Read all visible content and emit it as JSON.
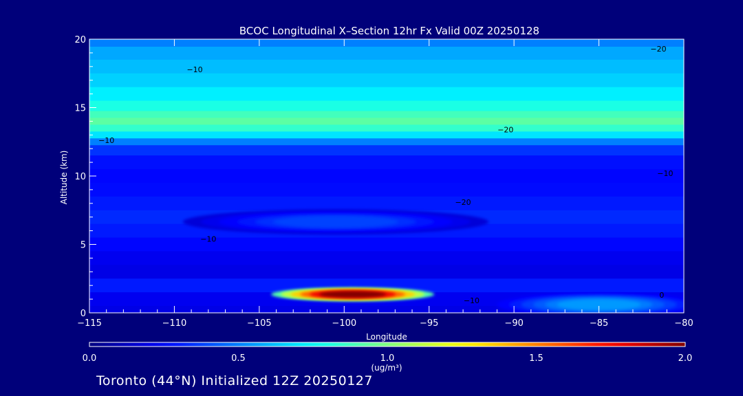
{
  "chart_data": {
    "type": "heatmap",
    "title": "BCOC Longitudinal X–Section 12hr  Fx Valid 00Z 20250128",
    "xlabel": "Longitude",
    "ylabel": "Altitude (km)",
    "xlim": [
      -115,
      -80
    ],
    "ylim": [
      0,
      20
    ],
    "x_ticks": [
      -115,
      -110,
      -105,
      -100,
      -95,
      -90,
      -85,
      -80
    ],
    "x_tick_labels": [
      "−115",
      "−110",
      "−105",
      "−100",
      "−95",
      "−90",
      "−85",
      "−80"
    ],
    "y_ticks": [
      0,
      5,
      10,
      15,
      20
    ],
    "y_tick_labels": [
      "0",
      "5",
      "10",
      "15",
      "20"
    ],
    "colorbar": {
      "min": 0.0,
      "max": 2.0,
      "ticks": [
        0.0,
        0.5,
        1.0,
        1.5,
        2.0
      ],
      "tick_labels": [
        "0.0",
        "0.5",
        "1.0",
        "1.5",
        "2.0"
      ],
      "unit_label": "(ug/m³)",
      "colormap": "jet"
    },
    "field_bands": [
      {
        "alt_km": 19.9,
        "value": 0.5
      },
      {
        "alt_km": 19.0,
        "value": 0.58
      },
      {
        "alt_km": 18.0,
        "value": 0.62
      },
      {
        "alt_km": 17.0,
        "value": 0.66
      },
      {
        "alt_km": 16.0,
        "value": 0.72
      },
      {
        "alt_km": 15.0,
        "value": 0.8
      },
      {
        "alt_km": 14.5,
        "value": 0.88
      },
      {
        "alt_km": 14.0,
        "value": 0.93
      },
      {
        "alt_km": 13.5,
        "value": 0.85
      },
      {
        "alt_km": 13.0,
        "value": 0.7
      },
      {
        "alt_km": 12.5,
        "value": 0.5
      },
      {
        "alt_km": 12.0,
        "value": 0.35
      },
      {
        "alt_km": 11.0,
        "value": 0.28
      },
      {
        "alt_km": 10.0,
        "value": 0.26
      },
      {
        "alt_km": 9.0,
        "value": 0.27
      },
      {
        "alt_km": 8.0,
        "value": 0.3
      },
      {
        "alt_km": 7.0,
        "value": 0.33
      },
      {
        "alt_km": 6.0,
        "value": 0.3
      },
      {
        "alt_km": 5.0,
        "value": 0.26
      },
      {
        "alt_km": 4.0,
        "value": 0.22
      },
      {
        "alt_km": 3.0,
        "value": 0.2
      },
      {
        "alt_km": 2.0,
        "value": 0.3
      },
      {
        "alt_km": 1.0,
        "value": 0.22
      },
      {
        "alt_km": 0.0,
        "value": 0.2
      }
    ],
    "plumes": [
      {
        "name": "lower-tropospheric-core",
        "lon": [
          -103.5,
          -95.5
        ],
        "alt": [
          1.0,
          1.7
        ],
        "peak_value": 2.0
      },
      {
        "name": "surface-layer-east",
        "lon": [
          -90,
          -80
        ],
        "alt": [
          0.0,
          1.2
        ],
        "peak_value": 0.55
      },
      {
        "name": "mid-level-layer",
        "lon": [
          -108,
          -93
        ],
        "alt": [
          6.0,
          7.3
        ],
        "peak_value": 0.38
      }
    ],
    "contour_labels": [
      {
        "text": "−10",
        "lon": -108.8,
        "alt": 17.6
      },
      {
        "text": "−20",
        "lon": -81.5,
        "alt": 19.1
      },
      {
        "text": "−10",
        "lon": -114.0,
        "alt": 12.4
      },
      {
        "text": "−20",
        "lon": -90.5,
        "alt": 13.2
      },
      {
        "text": "−10",
        "lon": -81.1,
        "alt": 10.0
      },
      {
        "text": "−20",
        "lon": -93.0,
        "alt": 7.9
      },
      {
        "text": "−10",
        "lon": -108.0,
        "alt": 5.2
      },
      {
        "text": "−10",
        "lon": -92.5,
        "alt": 0.7
      },
      {
        "text": "0",
        "lon": -81.3,
        "alt": 1.1
      }
    ],
    "footer": "Toronto (44°N) Initialized 12Z 20250127"
  },
  "colors": {
    "background": "#00007a",
    "text": "#ffffff",
    "contour": "#000000"
  }
}
